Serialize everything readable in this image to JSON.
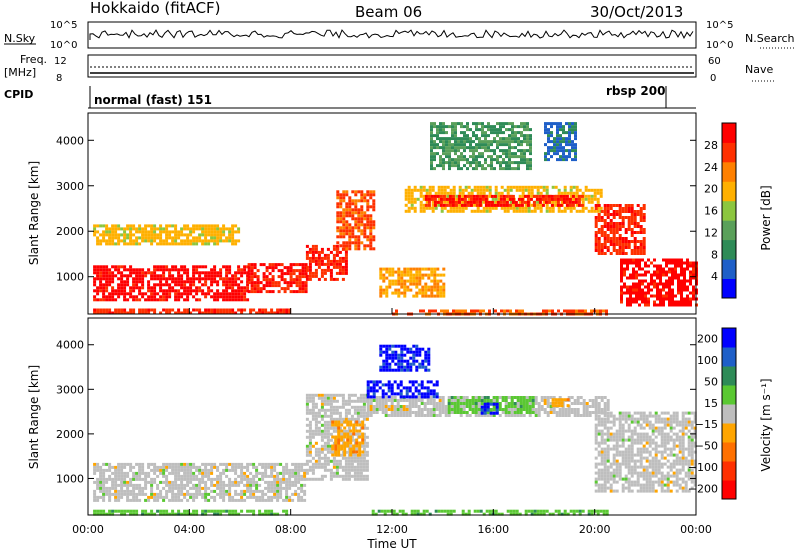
{
  "header": {
    "station": "Hokkaido (fitACF)",
    "beam": "Beam 06",
    "date": "30/Oct/2013"
  },
  "panels": {
    "nsky_label": "N.Sky",
    "nsearch_label": "N.Search",
    "nsky_ticks": [
      "10^5",
      "10^0"
    ],
    "freq_label_1": "Freq.",
    "freq_label_2": "[MHz]",
    "freq_ticks": [
      "12",
      "8"
    ],
    "nave_label": "Nave",
    "nave_ticks": [
      "60",
      "0"
    ],
    "cpid_label": "CPID",
    "cpid_entries": [
      "normal (fast) 151",
      "rbsp 200"
    ]
  },
  "colors": {
    "power": [
      "#0000ff",
      "#1e5fc8",
      "#2e8b57",
      "#5aa05a",
      "#8cc63f",
      "#ffb000",
      "#ff8000",
      "#ff3000",
      "#ff0000"
    ],
    "velocity": [
      "#0000ff",
      "#1e5fc8",
      "#2e8b57",
      "#5ac832",
      "#bebebe",
      "#ffa500",
      "#ff7000",
      "#ff3000",
      "#ff0000"
    ]
  },
  "chart_data": [
    {
      "type": "heatmap",
      "title": "Power",
      "xlabel": "",
      "ylabel": "Slant Range [km]",
      "x_ticks": [
        "00:00",
        "04:00",
        "08:00",
        "12:00",
        "16:00",
        "20:00",
        "00:00"
      ],
      "y_ticks": [
        "1000",
        "2000",
        "3000",
        "4000"
      ],
      "xlim_hours": [
        0,
        24
      ],
      "ylim_km": [
        180,
        4600
      ],
      "colorbar": {
        "label": "Power [dB]",
        "ticks": [
          "4",
          "8",
          "12",
          "16",
          "20",
          "24",
          "28"
        ],
        "range": [
          0,
          30
        ]
      },
      "regions": [
        {
          "t0": 0.2,
          "t1": 6.3,
          "r0": 500,
          "r1": 1250,
          "value": 28
        },
        {
          "t0": 6.3,
          "t1": 8.6,
          "r0": 650,
          "r1": 1300,
          "value": 27
        },
        {
          "t0": 8.6,
          "t1": 10.2,
          "r0": 950,
          "r1": 1700,
          "value": 26
        },
        {
          "t0": 9.8,
          "t1": 11.3,
          "r0": 1600,
          "r1": 2900,
          "value": 24
        },
        {
          "t0": 0.2,
          "t1": 6.0,
          "r0": 1700,
          "r1": 2150,
          "value": 18
        },
        {
          "t0": 0.2,
          "t1": 8.0,
          "r0": 200,
          "r1": 300,
          "value": 26
        },
        {
          "t0": 11.5,
          "t1": 14.0,
          "r0": 600,
          "r1": 1200,
          "value": 20
        },
        {
          "t0": 12.5,
          "t1": 20.3,
          "r0": 2450,
          "r1": 3000,
          "value": 18
        },
        {
          "t0": 13.3,
          "t1": 19.5,
          "r0": 2550,
          "r1": 2800,
          "value": 27
        },
        {
          "t0": 20.0,
          "t1": 22.0,
          "r0": 1500,
          "r1": 2600,
          "value": 26
        },
        {
          "t0": 21.0,
          "t1": 24.0,
          "r0": 400,
          "r1": 1400,
          "value": 28
        },
        {
          "t0": 12.0,
          "t1": 20.5,
          "r0": 200,
          "r1": 280,
          "value": 24
        },
        {
          "t0": 13.5,
          "t1": 17.5,
          "r0": 3400,
          "r1": 4400,
          "value": 10
        },
        {
          "t0": 18.0,
          "t1": 19.2,
          "r0": 3600,
          "r1": 4400,
          "value": 6
        }
      ]
    },
    {
      "type": "heatmap",
      "title": "Velocity",
      "xlabel": "Time UT",
      "ylabel": "Slant Range [km]",
      "x_ticks": [
        "00:00",
        "04:00",
        "08:00",
        "12:00",
        "16:00",
        "20:00",
        "00:00"
      ],
      "y_ticks": [
        "1000",
        "2000",
        "3000",
        "4000"
      ],
      "xlim_hours": [
        0,
        24
      ],
      "ylim_km": [
        180,
        4600
      ],
      "colorbar": {
        "label": "Velocity [m s⁻¹]",
        "ticks": [
          "200",
          "100",
          "50",
          "15",
          "−15",
          "−50",
          "−100",
          "−200"
        ],
        "range": [
          -250,
          250
        ]
      },
      "regions": [
        {
          "t0": 0.2,
          "t1": 8.6,
          "r0": 500,
          "r1": 1350,
          "value": 0
        },
        {
          "t0": 8.6,
          "t1": 11.0,
          "r0": 1000,
          "r1": 2900,
          "value": 0
        },
        {
          "t0": 9.6,
          "t1": 10.8,
          "r0": 1500,
          "r1": 2300,
          "value": -60
        },
        {
          "t0": 11.0,
          "t1": 20.5,
          "r0": 2400,
          "r1": 2850,
          "value": 0
        },
        {
          "t0": 11.0,
          "t1": 13.8,
          "r0": 2800,
          "r1": 3200,
          "value": 210
        },
        {
          "t0": 14.2,
          "t1": 17.6,
          "r0": 2500,
          "r1": 2850,
          "value": 60
        },
        {
          "t0": 15.5,
          "t1": 16.2,
          "r0": 2450,
          "r1": 2700,
          "value": 210
        },
        {
          "t0": 18.3,
          "t1": 19.0,
          "r0": 2600,
          "r1": 2800,
          "value": -60
        },
        {
          "t0": 20.0,
          "t1": 24.0,
          "r0": 700,
          "r1": 2500,
          "value": 0
        },
        {
          "t0": 0.2,
          "t1": 8.0,
          "r0": 200,
          "r1": 300,
          "value": 60
        },
        {
          "t0": 11.2,
          "t1": 20.5,
          "r0": 200,
          "r1": 300,
          "value": 60
        },
        {
          "t0": 11.5,
          "t1": 13.5,
          "r0": 3400,
          "r1": 4000,
          "value": 210
        }
      ]
    }
  ]
}
